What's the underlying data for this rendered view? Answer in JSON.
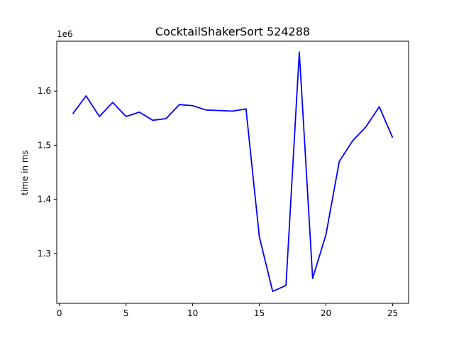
{
  "chart_data": {
    "type": "line",
    "title": "CocktailShakerSort 524288",
    "xlabel": "",
    "ylabel": "time in ms",
    "y_offset_label": "1e6",
    "xlim": [
      -0.2,
      26.2
    ],
    "ylim": [
      1.208,
      1.692
    ],
    "x_ticks": [
      0,
      5,
      10,
      15,
      20,
      25
    ],
    "y_ticks": [
      1.3,
      1.4,
      1.5,
      1.6
    ],
    "y_tick_labels": [
      "1.3",
      "1.4",
      "1.5",
      "1.6"
    ],
    "grid": false,
    "series": [
      {
        "color": "#0000ff",
        "x": [
          1,
          2,
          3,
          4,
          5,
          6,
          7,
          8,
          9,
          10,
          11,
          12,
          13,
          14,
          15,
          16,
          17,
          18,
          19,
          20,
          21,
          22,
          23,
          24,
          25
        ],
        "values": [
          1.558,
          1.591,
          1.553,
          1.579,
          1.553,
          1.561,
          1.546,
          1.549,
          1.575,
          1.573,
          1.565,
          1.564,
          1.563,
          1.567,
          1.331,
          1.23,
          1.241,
          1.672,
          1.254,
          1.335,
          1.47,
          1.508,
          1.534,
          1.571,
          1.514
        ]
      }
    ]
  }
}
